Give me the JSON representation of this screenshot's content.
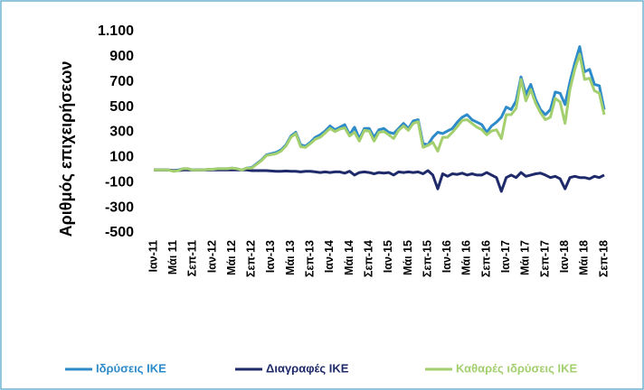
{
  "chart_data": {
    "type": "line",
    "y_axis_label": "Αριθμός επιχειρήσεων",
    "categories": [
      "Ιαν-11",
      null,
      null,
      null,
      "Μάι 11",
      null,
      null,
      null,
      "Σεπ-11",
      null,
      null,
      null,
      "Ιαν-12",
      null,
      null,
      null,
      "Μάι 12",
      null,
      null,
      null,
      "Σεπ-12",
      null,
      null,
      null,
      "Ιαν-13",
      null,
      null,
      null,
      "Μάι 13",
      null,
      null,
      null,
      "Σεπ-13",
      null,
      null,
      null,
      "Ιαν-14",
      null,
      null,
      null,
      "Μάι 14",
      null,
      null,
      null,
      "Σεπ-14",
      null,
      null,
      null,
      "Ιαν-15",
      null,
      null,
      null,
      "Μάι 15",
      null,
      null,
      null,
      "Σεπ-15",
      null,
      null,
      null,
      "Ιαν-16",
      null,
      null,
      null,
      "Μάι 16",
      null,
      null,
      null,
      "Σεπ-16",
      null,
      null,
      null,
      "Ιαν-17",
      null,
      null,
      null,
      "Μάι 17",
      null,
      null,
      null,
      "Σεπ-17",
      null,
      null,
      null,
      "Ιαν-18",
      null,
      null,
      null,
      "Μάι 18",
      null,
      null,
      null,
      "Σεπ-18"
    ],
    "series": [
      {
        "name": "Ιδρύσεις ΙΚΕ",
        "color": "#2e8bc9",
        "values": [
          0,
          0,
          0,
          0,
          -5,
          0,
          10,
          10,
          0,
          0,
          0,
          5,
          5,
          10,
          10,
          10,
          15,
          10,
          0,
          15,
          20,
          50,
          80,
          120,
          130,
          140,
          160,
          200,
          270,
          300,
          200,
          190,
          220,
          260,
          280,
          310,
          350,
          320,
          340,
          360,
          280,
          340,
          250,
          330,
          330,
          260,
          320,
          330,
          300,
          290,
          330,
          370,
          330,
          390,
          400,
          210,
          200,
          260,
          300,
          290,
          310,
          330,
          380,
          420,
          440,
          400,
          380,
          360,
          300,
          350,
          380,
          420,
          500,
          480,
          550,
          740,
          600,
          680,
          560,
          480,
          440,
          480,
          620,
          610,
          520,
          700,
          850,
          980,
          780,
          800,
          680,
          670,
          480
        ]
      },
      {
        "name": "Διαγραφές ΙΚΕ",
        "color": "#1f2a6b",
        "values": [
          0,
          0,
          0,
          0,
          -5,
          -5,
          0,
          0,
          0,
          0,
          0,
          0,
          0,
          0,
          0,
          0,
          0,
          0,
          0,
          0,
          -5,
          -5,
          -5,
          -5,
          -8,
          -10,
          -10,
          -8,
          -10,
          -10,
          -15,
          -10,
          -10,
          -15,
          -20,
          -15,
          -20,
          -15,
          -15,
          -25,
          -10,
          -40,
          -20,
          -15,
          -20,
          -30,
          -20,
          -25,
          -20,
          -40,
          -15,
          -20,
          -15,
          -20,
          -15,
          -30,
          -5,
          -40,
          -150,
          -30,
          -50,
          -30,
          -35,
          -25,
          -40,
          -30,
          -40,
          -40,
          -20,
          -40,
          -60,
          -170,
          -60,
          -40,
          -60,
          -20,
          -50,
          -40,
          -30,
          -25,
          -40,
          -60,
          -50,
          -70,
          -150,
          -60,
          -50,
          -60,
          -60,
          -70,
          -50,
          -60,
          -40
        ]
      },
      {
        "name": "Καθαρές ιδρύσεις ΙΚΕ",
        "color": "#a3cf6e",
        "values": [
          0,
          0,
          0,
          0,
          -10,
          -5,
          10,
          10,
          0,
          0,
          0,
          5,
          5,
          10,
          10,
          10,
          15,
          10,
          0,
          15,
          15,
          45,
          75,
          115,
          122,
          130,
          150,
          192,
          260,
          290,
          185,
          180,
          210,
          245,
          260,
          295,
          330,
          305,
          325,
          335,
          270,
          300,
          230,
          315,
          310,
          230,
          300,
          305,
          280,
          250,
          315,
          350,
          315,
          370,
          385,
          180,
          195,
          220,
          150,
          260,
          260,
          300,
          345,
          395,
          400,
          370,
          340,
          320,
          280,
          310,
          320,
          250,
          440,
          440,
          490,
          720,
          550,
          640,
          530,
          455,
          400,
          420,
          570,
          540,
          370,
          640,
          800,
          920,
          720,
          730,
          630,
          610,
          440
        ]
      }
    ],
    "ylim": [
      -500,
      1100
    ],
    "yticks": [
      -500,
      -300,
      -100,
      100,
      300,
      500,
      700,
      900,
      {
        "value": 1100,
        "label": "1.100"
      }
    ],
    "grid": false,
    "legend": "bottom"
  }
}
